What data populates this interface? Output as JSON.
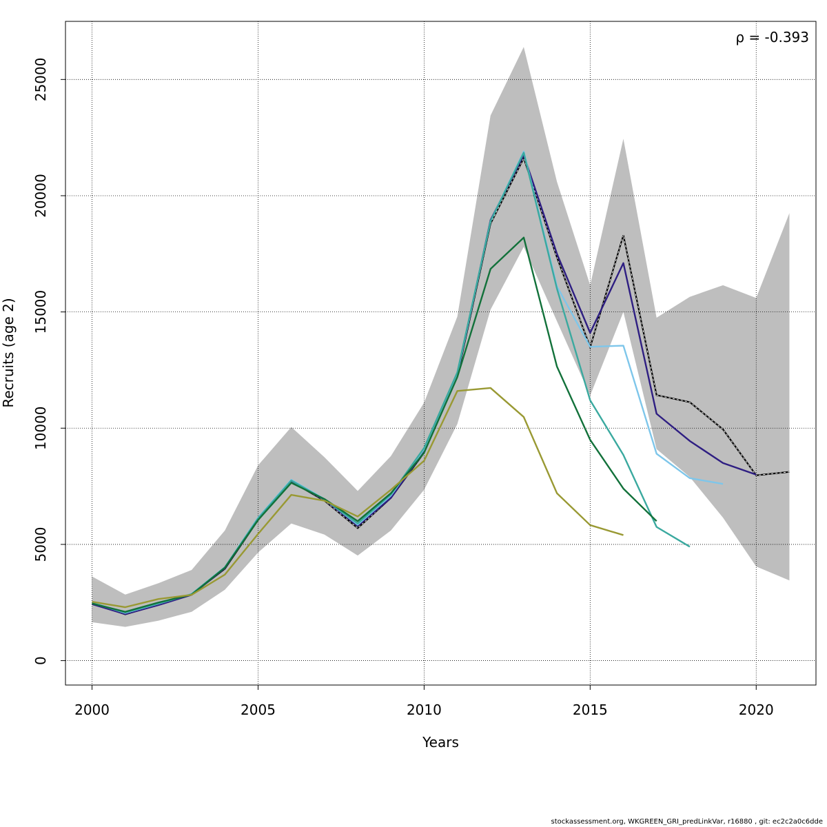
{
  "chart_data": {
    "type": "line",
    "title": "",
    "xlabel": "Years",
    "ylabel": "Recruits (age 2)",
    "annotation": "ρ = -0.393",
    "xlim": [
      1999.2,
      2021.8
    ],
    "ylim": [
      -1050,
      27500
    ],
    "x_ticks": [
      2000,
      2005,
      2010,
      2015,
      2020
    ],
    "x_tick_labels": [
      "2000",
      "2005",
      "2010",
      "2015",
      "2020"
    ],
    "y_ticks": [
      0,
      5000,
      10000,
      15000,
      20000,
      25000
    ],
    "y_tick_labels": [
      "0",
      "5000",
      "10000",
      "15000",
      "20000",
      "25000"
    ],
    "grid": true,
    "confidence_band": {
      "color": "#bebebe",
      "x": [
        2000,
        2001,
        2002,
        2003,
        2004,
        2005,
        2006,
        2007,
        2008,
        2009,
        2010,
        2011,
        2012,
        2013,
        2014,
        2015,
        2016,
        2017,
        2018,
        2019,
        2020,
        2021
      ],
      "lower": [
        1650,
        1450,
        1720,
        2100,
        3050,
        4650,
        5900,
        5420,
        4520,
        5600,
        7350,
        10180,
        15100,
        17800,
        14600,
        11400,
        15000,
        9100,
        7900,
        6150,
        4050,
        3450
      ],
      "upper": [
        3620,
        2840,
        3330,
        3900,
        5600,
        8400,
        10050,
        8750,
        7300,
        8800,
        11100,
        14800,
        23450,
        26400,
        20600,
        16150,
        22450,
        14750,
        15650,
        16150,
        15600,
        19250
      ]
    },
    "series": [
      {
        "name": "base",
        "color": "#000000",
        "dashed": true,
        "x": [
          2000,
          2001,
          2002,
          2003,
          2004,
          2005,
          2006,
          2007,
          2008,
          2009,
          2010,
          2011,
          2012,
          2013,
          2014,
          2015,
          2016,
          2017,
          2018,
          2019,
          2020,
          2021
        ],
        "values": [
          2480,
          1990,
          2400,
          2850,
          3950,
          6050,
          7700,
          6880,
          5700,
          7000,
          8950,
          12230,
          18800,
          21620,
          17350,
          13480,
          18300,
          11420,
          11120,
          9950,
          7970,
          8120
        ]
      },
      {
        "name": "peel-1",
        "color": "#2e1e82",
        "dashed": false,
        "x": [
          2000,
          2001,
          2002,
          2003,
          2004,
          2005,
          2006,
          2007,
          2008,
          2009,
          2010,
          2011,
          2012,
          2013,
          2014,
          2015,
          2016,
          2017,
          2018,
          2019,
          2020
        ],
        "values": [
          2430,
          2000,
          2390,
          2830,
          3980,
          6100,
          7700,
          6920,
          5800,
          7000,
          9000,
          12300,
          18950,
          21750,
          17500,
          14100,
          17100,
          10620,
          9450,
          8500,
          8000
        ]
      },
      {
        "name": "peel-2",
        "color": "#7ec6ea",
        "dashed": false,
        "x": [
          2000,
          2001,
          2002,
          2003,
          2004,
          2005,
          2006,
          2007,
          2008,
          2009,
          2010,
          2011,
          2012,
          2013,
          2014,
          2015,
          2016,
          2017,
          2018,
          2019
        ],
        "values": [
          2500,
          2050,
          2450,
          2870,
          4020,
          6150,
          7780,
          6950,
          5850,
          7100,
          9100,
          12350,
          18900,
          21900,
          16100,
          13500,
          13550,
          8900,
          7850,
          7600
        ]
      },
      {
        "name": "peel-3",
        "color": "#3aa99f",
        "dashed": false,
        "x": [
          2000,
          2001,
          2002,
          2003,
          2004,
          2005,
          2006,
          2007,
          2008,
          2009,
          2010,
          2011,
          2012,
          2013,
          2014,
          2015,
          2016,
          2017,
          2018
        ],
        "values": [
          2470,
          2070,
          2460,
          2860,
          4010,
          6120,
          7750,
          6930,
          5900,
          7150,
          9150,
          12400,
          18900,
          21850,
          16000,
          11200,
          8850,
          5750,
          4900
        ]
      },
      {
        "name": "peel-4",
        "color": "#12713a",
        "dashed": false,
        "x": [
          2000,
          2001,
          2002,
          2003,
          2004,
          2005,
          2006,
          2007,
          2008,
          2009,
          2010,
          2011,
          2012,
          2013,
          2014,
          2015,
          2016,
          2017
        ],
        "values": [
          2460,
          2100,
          2500,
          2840,
          4000,
          6050,
          7650,
          6950,
          6000,
          7200,
          8950,
          12200,
          16850,
          18200,
          12650,
          9500,
          7400,
          6000
        ]
      },
      {
        "name": "peel-5",
        "color": "#999933",
        "dashed": false,
        "x": [
          2000,
          2001,
          2002,
          2003,
          2004,
          2005,
          2006,
          2007,
          2008,
          2009,
          2010,
          2011,
          2012,
          2013,
          2014,
          2015,
          2016
        ],
        "values": [
          2530,
          2300,
          2650,
          2830,
          3700,
          5450,
          7130,
          6880,
          6200,
          7350,
          8600,
          11600,
          11730,
          10480,
          7200,
          5830,
          5400
        ]
      }
    ]
  },
  "footer": "stockassessment.org, WKGREEN_GRI_predLinkVar, r16880 , git: ec2c2a0c6dde"
}
